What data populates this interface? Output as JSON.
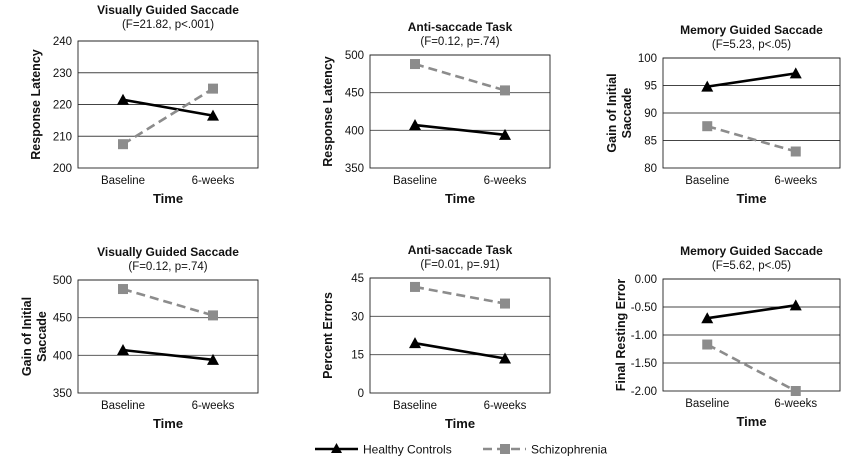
{
  "legend": {
    "items": [
      {
        "name": "Healthy Controls",
        "marker": "triangle",
        "color": "#000000",
        "dash": "solid"
      },
      {
        "name": "Schizophrenia",
        "marker": "square",
        "color": "#8c8c8c",
        "dash": "dashed"
      }
    ]
  },
  "chart_data": [
    {
      "type": "line",
      "title": "Visually Guided Saccade",
      "subtitle": "(F=21.82, p<.001)",
      "xlabel": "Time",
      "ylabel": "Response Latency",
      "categories": [
        "Baseline",
        "6-weeks"
      ],
      "ylim": [
        200,
        240
      ],
      "yticks": [
        200,
        210,
        220,
        230,
        240
      ],
      "ytick_labels": [
        "200",
        "210",
        "220",
        "230",
        "240"
      ],
      "grid": true,
      "series": [
        {
          "name": "Healthy Controls",
          "values": [
            221.5,
            216.5
          ]
        },
        {
          "name": "Schizophrenia",
          "values": [
            207.5,
            225
          ]
        }
      ]
    },
    {
      "type": "line",
      "title": "Anti-saccade Task",
      "subtitle": "(F=0.12, p=.74)",
      "xlabel": "Time",
      "ylabel": "Response Latency",
      "categories": [
        "Baseline",
        "6-weeks"
      ],
      "ylim": [
        350,
        500
      ],
      "yticks": [
        350,
        400,
        450,
        500
      ],
      "ytick_labels": [
        "350",
        "400",
        "450",
        "500"
      ],
      "grid": true,
      "series": [
        {
          "name": "Healthy Controls",
          "values": [
            407,
            394
          ]
        },
        {
          "name": "Schizophrenia",
          "values": [
            488,
            453
          ]
        }
      ]
    },
    {
      "type": "line",
      "title": "Memory Guided Saccade",
      "subtitle": "(F=5.23, p<.05)",
      "xlabel": "Time",
      "ylabel": "Gain of Initial Saccade",
      "ylabel_lines": [
        "Gain of Initial",
        "Saccade"
      ],
      "categories": [
        "Baseline",
        "6-weeks"
      ],
      "ylim": [
        80,
        100
      ],
      "yticks": [
        80,
        85,
        90,
        95,
        100
      ],
      "ytick_labels": [
        "80",
        "85",
        "90",
        "95",
        "100"
      ],
      "grid": true,
      "series": [
        {
          "name": "Healthy Controls",
          "values": [
            94.8,
            97.2
          ]
        },
        {
          "name": "Schizophrenia",
          "values": [
            87.6,
            83
          ]
        }
      ]
    },
    {
      "type": "line",
      "title": "Visually Guided Saccade",
      "subtitle": "(F=0.12, p=.74)",
      "xlabel": "Time",
      "ylabel": "Gain of Initial Saccade",
      "ylabel_lines": [
        "Gain of Initial",
        "Saccade"
      ],
      "categories": [
        "Baseline",
        "6-weeks"
      ],
      "ylim": [
        350,
        500
      ],
      "yticks": [
        350,
        400,
        450,
        500
      ],
      "ytick_labels": [
        "350",
        "400",
        "450",
        "500"
      ],
      "grid": true,
      "series": [
        {
          "name": "Healthy Controls",
          "values": [
            407,
            394
          ]
        },
        {
          "name": "Schizophrenia",
          "values": [
            488,
            453
          ]
        }
      ]
    },
    {
      "type": "line",
      "title": "Anti-saccade Task",
      "subtitle": "(F=0.01, p=.91)",
      "xlabel": "Time",
      "ylabel": "Percent Errors",
      "categories": [
        "Baseline",
        "6-weeks"
      ],
      "ylim": [
        0,
        45
      ],
      "yticks": [
        0,
        15,
        30,
        45
      ],
      "ytick_labels": [
        "0",
        "15",
        "30",
        "45"
      ],
      "grid": true,
      "series": [
        {
          "name": "Healthy Controls",
          "values": [
            19.5,
            13.5
          ]
        },
        {
          "name": "Schizophrenia",
          "values": [
            41.5,
            35
          ]
        }
      ]
    },
    {
      "type": "line",
      "title": "Memory Guided Saccade",
      "subtitle": "(F=5.62, p<.05)",
      "xlabel": "Time",
      "ylabel": "Final Resting Error",
      "categories": [
        "Baseline",
        "6-weeks"
      ],
      "ylim": [
        -2,
        0
      ],
      "yticks": [
        -2,
        -1.5,
        -1,
        -0.5,
        0
      ],
      "ytick_labels": [
        "-2.00",
        "-1.50",
        "-1.00",
        "-0.50",
        "0.00"
      ],
      "grid": true,
      "series": [
        {
          "name": "Healthy Controls",
          "values": [
            -0.7,
            -0.47
          ]
        },
        {
          "name": "Schizophrenia",
          "values": [
            -1.17,
            -2.0
          ]
        }
      ]
    }
  ]
}
